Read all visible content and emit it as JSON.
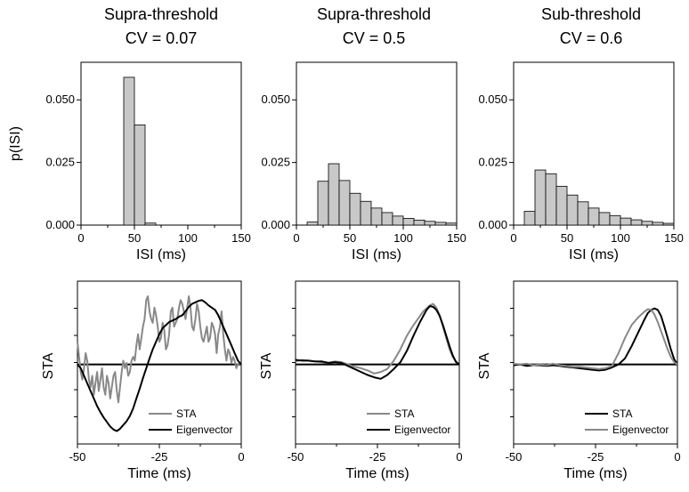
{
  "colors": {
    "sta_gray": "#888888",
    "eig_black": "#000000",
    "bar_fill": "#c8c8c8",
    "bar_stroke": "#000000"
  },
  "columns": [
    {
      "title": "Supra-threshold",
      "cv_label": "CV = 0.07"
    },
    {
      "title": "Supra-threshold",
      "cv_label": "CV = 0.5"
    },
    {
      "title": "Sub-threshold",
      "cv_label": "CV = 0.6"
    }
  ],
  "chart_data": [
    {
      "type": "bar",
      "panel": "top-left",
      "ylabel": "p(ISI)",
      "xlabel": "ISI (ms)",
      "xlim": [
        0,
        150
      ],
      "ylim": [
        0,
        0.065
      ],
      "xticks": [
        "0",
        "50",
        "100",
        "150"
      ],
      "yticks": [
        "0.000",
        "0.025",
        "0.050"
      ],
      "bin_width": 10,
      "bins": [
        40,
        50,
        60
      ],
      "values": [
        0.059,
        0.04,
        0.0008
      ]
    },
    {
      "type": "bar",
      "panel": "top-middle",
      "xlabel": "ISI (ms)",
      "xlim": [
        0,
        150
      ],
      "ylim": [
        0,
        0.065
      ],
      "xticks": [
        "0",
        "50",
        "100",
        "150"
      ],
      "yticks": [
        "0.000",
        "0.025",
        "0.050"
      ],
      "bin_width": 10,
      "bins": [
        10,
        20,
        30,
        40,
        50,
        60,
        70,
        80,
        90,
        100,
        110,
        120,
        130,
        140
      ],
      "values": [
        0.0012,
        0.0175,
        0.0245,
        0.0178,
        0.0127,
        0.0095,
        0.0068,
        0.005,
        0.0036,
        0.0027,
        0.002,
        0.0015,
        0.0011,
        0.0008
      ]
    },
    {
      "type": "bar",
      "panel": "top-right",
      "xlabel": "ISI (ms)",
      "xlim": [
        0,
        150
      ],
      "ylim": [
        0,
        0.065
      ],
      "xticks": [
        "0",
        "50",
        "100",
        "150"
      ],
      "yticks": [
        "0.000",
        "0.025",
        "0.050"
      ],
      "bin_width": 10,
      "bins": [
        10,
        20,
        30,
        40,
        50,
        60,
        70,
        80,
        90,
        100,
        110,
        120,
        130,
        140
      ],
      "values": [
        0.0055,
        0.022,
        0.0205,
        0.0155,
        0.012,
        0.0093,
        0.0068,
        0.005,
        0.0038,
        0.0028,
        0.0021,
        0.0015,
        0.0011,
        0.0007
      ]
    },
    {
      "type": "line",
      "panel": "bottom-left",
      "ylabel": "STA",
      "xlabel": "Time (ms)",
      "xlim": [
        -50,
        0
      ],
      "ylim": [
        -1.05,
        1.1
      ],
      "xticks": [
        "-50",
        "-25",
        "0"
      ],
      "legend_placement": "bottom-right",
      "series": [
        {
          "name": "STA",
          "color": "#888888",
          "x": [
            -50,
            -49.5,
            -49,
            -48.5,
            -48,
            -47.5,
            -47,
            -46.5,
            -46,
            -45.5,
            -45,
            -44.5,
            -44,
            -43.5,
            -43,
            -42.5,
            -42,
            -41.5,
            -41,
            -40.5,
            -40,
            -39.5,
            -39,
            -38.5,
            -38,
            -37.5,
            -37,
            -36.5,
            -36,
            -35.5,
            -35,
            -34.5,
            -34,
            -33.5,
            -33,
            -32.5,
            -32,
            -31.5,
            -31,
            -30.5,
            -30,
            -29.5,
            -29,
            -28.5,
            -28,
            -27.5,
            -27,
            -26.5,
            -26,
            -25.5,
            -25,
            -24.5,
            -24,
            -23.5,
            -23,
            -22.5,
            -22,
            -21.5,
            -21,
            -20.5,
            -20,
            -19.5,
            -19,
            -18.5,
            -18,
            -17.5,
            -17,
            -16.5,
            -16,
            -15.5,
            -15,
            -14.5,
            -14,
            -13.5,
            -13,
            -12.5,
            -12,
            -11.5,
            -11,
            -10.5,
            -10,
            -9.5,
            -9,
            -8.5,
            -8,
            -7.5,
            -7,
            -6.5,
            -6,
            -5.5,
            -5,
            -4.5,
            -4,
            -3.5,
            -3,
            -2.5,
            -2,
            -1.5,
            -1,
            -0.5,
            0
          ],
          "y": [
            0.3,
            0.1,
            -0.1,
            -0.2,
            -0.05,
            0.15,
            0.05,
            -0.2,
            -0.3,
            -0.15,
            -0.4,
            -0.25,
            -0.1,
            -0.35,
            -0.2,
            -0.05,
            -0.3,
            -0.4,
            -0.15,
            -0.25,
            -0.45,
            -0.3,
            -0.15,
            -0.1,
            -0.35,
            -0.5,
            -0.3,
            -0.1,
            0.05,
            -0.05,
            0.02,
            -0.15,
            -0.1,
            0.05,
            0.1,
            0.05,
            0.25,
            0.4,
            0.2,
            0.35,
            0.5,
            0.6,
            0.85,
            0.9,
            0.7,
            0.6,
            0.55,
            0.75,
            0.65,
            0.5,
            0.3,
            0.35,
            0.55,
            0.45,
            0.2,
            0.25,
            0.4,
            0.7,
            0.75,
            0.5,
            0.55,
            0.6,
            0.75,
            0.85,
            0.8,
            0.7,
            0.6,
            0.75,
            0.9,
            0.75,
            0.5,
            0.45,
            0.6,
            0.8,
            0.7,
            0.5,
            0.35,
            0.3,
            0.4,
            0.5,
            0.3,
            0.35,
            0.55,
            0.5,
            0.4,
            0.15,
            0.4,
            0.5,
            0.7,
            0.4,
            0.2,
            0.05,
            0.2,
            0.15,
            0.02,
            0.1,
            0.05,
            -0.05,
            0.0,
            0.02,
            0.0
          ]
        },
        {
          "name": "Eigenvector",
          "color": "#000000",
          "x": [
            -50,
            -49,
            -48,
            -47,
            -46,
            -45,
            -44,
            -43,
            -42,
            -41,
            -40,
            -39,
            -38,
            -37,
            -36,
            -35,
            -34,
            -33,
            -32,
            -31,
            -30,
            -29,
            -28,
            -27,
            -26,
            -25,
            -24,
            -23,
            -22,
            -21,
            -20,
            -19,
            -18,
            -17,
            -16,
            -15,
            -14,
            -13,
            -12,
            -11,
            -10,
            -9,
            -8,
            -7,
            -6,
            -5,
            -4,
            -3,
            -2,
            -1,
            0
          ],
          "y": [
            0.0,
            -0.05,
            -0.15,
            -0.25,
            -0.35,
            -0.45,
            -0.55,
            -0.63,
            -0.7,
            -0.76,
            -0.82,
            -0.86,
            -0.88,
            -0.85,
            -0.8,
            -0.75,
            -0.68,
            -0.58,
            -0.45,
            -0.32,
            -0.18,
            -0.05,
            0.08,
            0.2,
            0.3,
            0.4,
            0.48,
            0.52,
            0.56,
            0.58,
            0.6,
            0.63,
            0.65,
            0.7,
            0.76,
            0.8,
            0.82,
            0.84,
            0.85,
            0.82,
            0.78,
            0.75,
            0.72,
            0.65,
            0.55,
            0.45,
            0.35,
            0.25,
            0.15,
            0.05,
            0.0
          ]
        }
      ]
    },
    {
      "type": "line",
      "panel": "bottom-middle",
      "ylabel": "STA",
      "xlabel": "Time (ms)",
      "xlim": [
        -50,
        0
      ],
      "ylim": [
        -1.05,
        1.1
      ],
      "xticks": [
        "-50",
        "-25",
        "0"
      ],
      "legend_placement": "bottom-right",
      "series": [
        {
          "name": "STA",
          "color": "#888888",
          "x": [
            -50,
            -48,
            -46,
            -44,
            -42,
            -40,
            -38,
            -36,
            -34,
            -32,
            -30,
            -28,
            -26,
            -24,
            -22,
            -20,
            -18,
            -16,
            -14,
            -12,
            -11,
            -10,
            -9,
            -8,
            -7,
            -6,
            -5,
            -4,
            -3,
            -2,
            -1,
            0
          ],
          "y": [
            0.04,
            0.06,
            0.05,
            0.04,
            0.03,
            0.02,
            0.04,
            0.03,
            0.0,
            -0.03,
            -0.05,
            -0.08,
            -0.12,
            -0.1,
            -0.06,
            0.05,
            0.2,
            0.38,
            0.52,
            0.64,
            0.7,
            0.74,
            0.78,
            0.8,
            0.75,
            0.65,
            0.5,
            0.35,
            0.2,
            0.1,
            0.04,
            0.0
          ]
        },
        {
          "name": "Eigenvector",
          "color": "#000000",
          "x": [
            -50,
            -48,
            -46,
            -44,
            -42,
            -40,
            -38,
            -36,
            -34,
            -32,
            -30,
            -28,
            -26,
            -24,
            -22,
            -20,
            -18,
            -16,
            -14,
            -12,
            -10,
            -9,
            -8,
            -7,
            -6,
            -5,
            -4,
            -3,
            -2,
            -1,
            0
          ],
          "y": [
            0.06,
            0.05,
            0.05,
            0.04,
            0.04,
            0.02,
            0.03,
            0.02,
            -0.02,
            -0.06,
            -0.1,
            -0.14,
            -0.17,
            -0.19,
            -0.14,
            -0.06,
            0.03,
            0.18,
            0.38,
            0.56,
            0.72,
            0.77,
            0.76,
            0.72,
            0.64,
            0.52,
            0.38,
            0.24,
            0.12,
            0.03,
            0.0
          ]
        }
      ]
    },
    {
      "type": "line",
      "panel": "bottom-right",
      "ylabel": "STA",
      "xlabel": "Time (ms)",
      "xlim": [
        -50,
        0
      ],
      "ylim": [
        -1.05,
        1.1
      ],
      "xticks": [
        "-50",
        "-25",
        "0"
      ],
      "legend_placement": "bottom-right",
      "series": [
        {
          "name": "STA",
          "color": "#000000",
          "x": [
            -50,
            -48,
            -46,
            -44,
            -42,
            -40,
            -38,
            -36,
            -34,
            -32,
            -30,
            -28,
            -26,
            -24,
            -22,
            -20,
            -18,
            -16,
            -14,
            -12,
            -10,
            -9,
            -8,
            -7,
            -6,
            -5,
            -4,
            -3,
            -2,
            -1,
            0
          ],
          "y": [
            -0.01,
            0.0,
            -0.02,
            -0.01,
            -0.01,
            -0.02,
            -0.01,
            -0.02,
            -0.03,
            -0.04,
            -0.05,
            -0.06,
            -0.07,
            -0.08,
            -0.07,
            -0.04,
            0.0,
            0.08,
            0.24,
            0.42,
            0.6,
            0.68,
            0.72,
            0.74,
            0.72,
            0.64,
            0.5,
            0.35,
            0.2,
            0.07,
            0.0
          ]
        },
        {
          "name": "Eigenvector",
          "color": "#888888",
          "x": [
            -50,
            -48,
            -46,
            -44,
            -42,
            -40,
            -38,
            -36,
            -34,
            -32,
            -30,
            -28,
            -26,
            -24,
            -22,
            -20,
            -18,
            -16,
            -14,
            -12,
            -10,
            -9,
            -8,
            -7,
            -6,
            -5,
            -4,
            -3,
            -2,
            -1,
            0
          ],
          "y": [
            0.01,
            0.0,
            0.01,
            -0.01,
            0.0,
            -0.01,
            0.01,
            -0.01,
            -0.02,
            -0.03,
            -0.03,
            -0.04,
            -0.05,
            -0.06,
            -0.05,
            -0.02,
            0.15,
            0.35,
            0.52,
            0.62,
            0.7,
            0.73,
            0.72,
            0.66,
            0.56,
            0.44,
            0.32,
            0.2,
            0.1,
            0.03,
            0.0
          ]
        }
      ]
    }
  ]
}
